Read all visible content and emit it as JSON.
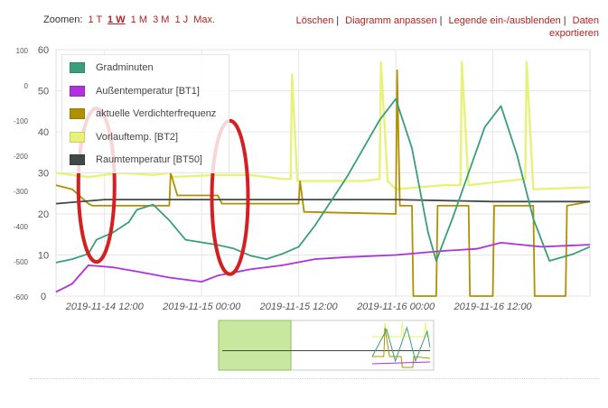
{
  "zoom": {
    "label": "Zoomen:",
    "options": [
      "1 T",
      "1 W",
      "1 M",
      "3 M",
      "1 J",
      "Max."
    ],
    "selected": "1 W"
  },
  "actions": {
    "delete": "Löschen",
    "fit": "Diagramm anpassen",
    "legend_toggle": "Legende ein-/ausblenden",
    "export": "Daten exportieren"
  },
  "colors": {
    "gradminuten": "#3a9e7a",
    "aussentemp": "#b030e0",
    "verdichter": "#b09000",
    "vorlauf": "#e8f27a",
    "raumtemp": "#404848",
    "annotation": "#d42020",
    "navigator_fill": "#c8e8a0"
  },
  "chart_data": {
    "type": "line",
    "x_range": [
      "2019-11-14 06:00",
      "2019-11-17 00:00"
    ],
    "x_ticks": [
      "2019-11-14 12:00",
      "2019-11-15 00:00",
      "2019-11-15 12:00",
      "2019-11-16 00:00",
      "2019-11-16 12:00"
    ],
    "y_left": {
      "ylim": [
        0,
        60
      ],
      "ticks": [
        "0",
        "10",
        "20",
        "30",
        "40",
        "50",
        "60"
      ]
    },
    "y_right": {
      "ylim": [
        -600,
        100
      ],
      "ticks": [
        "-600",
        "-500",
        "-400",
        "-300",
        "-200",
        "-100",
        "0",
        "100"
      ]
    },
    "grid": true,
    "legend_position": "top-left",
    "series": [
      {
        "name": "Gradminuten",
        "axis": "right",
        "color_key": "gradminuten",
        "points": [
          [
            "2019-11-14 06:00",
            -505
          ],
          [
            "2019-11-14 08:00",
            -495
          ],
          [
            "2019-11-14 10:00",
            -480
          ],
          [
            "2019-11-14 11:00",
            -440
          ],
          [
            "2019-11-14 13:00",
            -420
          ],
          [
            "2019-11-14 15:00",
            -390
          ],
          [
            "2019-11-14 16:00",
            -355
          ],
          [
            "2019-11-14 18:00",
            -340
          ],
          [
            "2019-11-14 20:00",
            -385
          ],
          [
            "2019-11-14 22:00",
            -440
          ],
          [
            "2019-11-15 02:00",
            -455
          ],
          [
            "2019-11-15 04:00",
            -465
          ],
          [
            "2019-11-15 06:00",
            -485
          ],
          [
            "2019-11-15 08:00",
            -495
          ],
          [
            "2019-11-15 10:00",
            -480
          ],
          [
            "2019-11-15 12:00",
            -460
          ],
          [
            "2019-11-15 14:00",
            -400
          ],
          [
            "2019-11-15 16:00",
            -330
          ],
          [
            "2019-11-15 18:00",
            -260
          ],
          [
            "2019-11-15 20:00",
            -180
          ],
          [
            "2019-11-15 22:00",
            -100
          ],
          [
            "2019-11-16 00:00",
            -40
          ],
          [
            "2019-11-16 02:00",
            -180
          ],
          [
            "2019-11-16 04:00",
            -420
          ],
          [
            "2019-11-16 05:00",
            -500
          ],
          [
            "2019-11-16 07:00",
            -380
          ],
          [
            "2019-11-16 09:00",
            -250
          ],
          [
            "2019-11-16 11:00",
            -120
          ],
          [
            "2019-11-16 13:00",
            -60
          ],
          [
            "2019-11-16 15:00",
            -200
          ],
          [
            "2019-11-16 17:00",
            -380
          ],
          [
            "2019-11-16 19:00",
            -500
          ],
          [
            "2019-11-16 22:00",
            -480
          ],
          [
            "2019-11-17 00:00",
            -460
          ]
        ]
      },
      {
        "name": "Außentemperatur [BT1]",
        "axis": "left",
        "color_key": "aussentemp",
        "points": [
          [
            "2019-11-14 06:00",
            1
          ],
          [
            "2019-11-14 08:00",
            3
          ],
          [
            "2019-11-14 10:00",
            7.5
          ],
          [
            "2019-11-14 13:00",
            7
          ],
          [
            "2019-11-14 16:00",
            6
          ],
          [
            "2019-11-14 20:00",
            4.5
          ],
          [
            "2019-11-15 00:00",
            3.5
          ],
          [
            "2019-11-15 02:00",
            5
          ],
          [
            "2019-11-15 06:00",
            6.5
          ],
          [
            "2019-11-15 10:00",
            7.5
          ],
          [
            "2019-11-15 14:00",
            9
          ],
          [
            "2019-11-15 18:00",
            9.5
          ],
          [
            "2019-11-16 00:00",
            10
          ],
          [
            "2019-11-16 06:00",
            11
          ],
          [
            "2019-11-16 10:00",
            11.5
          ],
          [
            "2019-11-16 13:00",
            13
          ],
          [
            "2019-11-16 18:00",
            12
          ],
          [
            "2019-11-17 00:00",
            12.5
          ]
        ]
      },
      {
        "name": "aktuelle Verdichterfrequenz",
        "axis": "left",
        "color_key": "verdichter",
        "points": [
          [
            "2019-11-14 06:00",
            27
          ],
          [
            "2019-11-14 08:00",
            26
          ],
          [
            "2019-11-14 10:00",
            22.5
          ],
          [
            "2019-11-14 10:30",
            22
          ],
          [
            "2019-11-14 14:00",
            22
          ],
          [
            "2019-11-14 18:00",
            22
          ],
          [
            "2019-11-14 20:00",
            22
          ],
          [
            "2019-11-14 20:10",
            30
          ],
          [
            "2019-11-14 21:00",
            24.5
          ],
          [
            "2019-11-15 00:00",
            24.5
          ],
          [
            "2019-11-15 02:00",
            24.5
          ],
          [
            "2019-11-15 02:30",
            22.5
          ],
          [
            "2019-11-15 12:00",
            22.5
          ],
          [
            "2019-11-15 12:10",
            28
          ],
          [
            "2019-11-15 12:40",
            20.5
          ],
          [
            "2019-11-16 00:00",
            20
          ],
          [
            "2019-11-16 00:10",
            55
          ],
          [
            "2019-11-16 00:30",
            22
          ],
          [
            "2019-11-16 02:00",
            22
          ],
          [
            "2019-11-16 02:10",
            0
          ],
          [
            "2019-11-16 05:00",
            0
          ],
          [
            "2019-11-16 05:10",
            22
          ],
          [
            "2019-11-16 09:00",
            22
          ],
          [
            "2019-11-16 09:10",
            0
          ],
          [
            "2019-11-16 12:00",
            0
          ],
          [
            "2019-11-16 12:10",
            22
          ],
          [
            "2019-11-16 17:00",
            22
          ],
          [
            "2019-11-16 17:10",
            0
          ],
          [
            "2019-11-16 21:00",
            0
          ],
          [
            "2019-11-16 21:10",
            22
          ],
          [
            "2019-11-17 00:00",
            23
          ]
        ]
      },
      {
        "name": "Vorlauftemp. [BT2]",
        "axis": "left",
        "color_key": "vorlauf",
        "points": [
          [
            "2019-11-14 06:00",
            30
          ],
          [
            "2019-11-14 10:00",
            29
          ],
          [
            "2019-11-14 14:00",
            30
          ],
          [
            "2019-11-14 18:00",
            29.5
          ],
          [
            "2019-11-14 20:00",
            30
          ],
          [
            "2019-11-14 20:20",
            29
          ],
          [
            "2019-11-15 02:00",
            29.5
          ],
          [
            "2019-11-15 06:00",
            29.5
          ],
          [
            "2019-11-15 10:00",
            28.5
          ],
          [
            "2019-11-15 11:00",
            28.5
          ],
          [
            "2019-11-15 11:10",
            54
          ],
          [
            "2019-11-15 11:50",
            28
          ],
          [
            "2019-11-15 16:00",
            28
          ],
          [
            "2019-11-15 20:00",
            28
          ],
          [
            "2019-11-15 22:00",
            28.5
          ],
          [
            "2019-11-15 22:10",
            57
          ],
          [
            "2019-11-15 23:00",
            28
          ],
          [
            "2019-11-16 00:00",
            26
          ],
          [
            "2019-11-16 06:00",
            27
          ],
          [
            "2019-11-16 08:00",
            27
          ],
          [
            "2019-11-16 08:10",
            57
          ],
          [
            "2019-11-16 09:00",
            27
          ],
          [
            "2019-11-16 16:00",
            28.5
          ],
          [
            "2019-11-16 16:10",
            57
          ],
          [
            "2019-11-16 17:00",
            26
          ],
          [
            "2019-11-17 00:00",
            26.5
          ]
        ]
      },
      {
        "name": "Raumtemperatur [BT50]",
        "axis": "left",
        "color_key": "raumtemp",
        "points": [
          [
            "2019-11-14 06:00",
            22.5
          ],
          [
            "2019-11-14 12:00",
            23.5
          ],
          [
            "2019-11-15 00:00",
            23.5
          ],
          [
            "2019-11-15 12:00",
            23.5
          ],
          [
            "2019-11-16 00:00",
            23.5
          ],
          [
            "2019-11-16 12:00",
            23
          ],
          [
            "2019-11-17 00:00",
            23
          ]
        ]
      }
    ],
    "annotations": [
      {
        "type": "ellipse",
        "center": [
          "2019-11-14 11:00",
          27
        ],
        "color_key": "annotation"
      },
      {
        "type": "ellipse",
        "center": [
          "2019-11-15 03:30",
          24
        ],
        "color_key": "annotation"
      }
    ]
  }
}
